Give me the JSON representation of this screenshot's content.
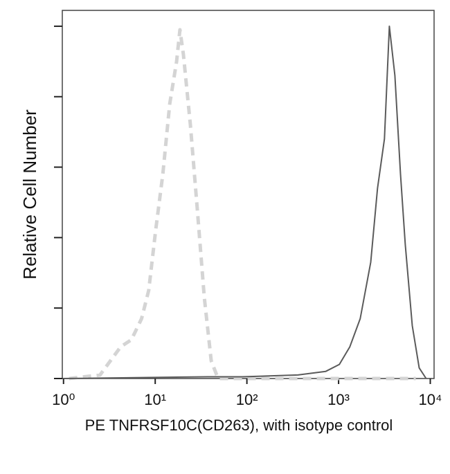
{
  "chart_data": {
    "type": "line",
    "xlabel": "PE TNFRSF10C(CD263), with isotype control",
    "ylabel": "Relative Cell Number",
    "xscale": "log",
    "xlim": [
      0.97,
      11000
    ],
    "xticks": [
      {
        "value": 1,
        "label": "10⁰"
      },
      {
        "value": 10,
        "label": "10¹"
      },
      {
        "value": 100,
        "label": "10²"
      },
      {
        "value": 1000,
        "label": "10³"
      },
      {
        "value": 10000,
        "label": "10⁴"
      }
    ],
    "ylim": [
      0,
      104.5
    ],
    "yticks": [
      0,
      20,
      40,
      60,
      80,
      100
    ],
    "series": [
      {
        "color": "#d4d4d4",
        "dashed": true,
        "x": [
          1.15,
          2.5,
          4.2,
          5.5,
          7.1,
          8.5,
          10.1,
          12.1,
          14.4,
          17.1,
          18.6,
          20.3,
          24.2,
          28.8,
          34.3,
          40.8,
          48.5,
          213,
          1217,
          6950
        ],
        "values": [
          0,
          1,
          9,
          11,
          17,
          25,
          42,
          58,
          78,
          90,
          99,
          92,
          72,
          48,
          23,
          5,
          0,
          0,
          0,
          0
        ]
      },
      {
        "color": "#5a5a5a",
        "dashed": false,
        "x": [
          1,
          37.4,
          89,
          360,
          721,
          1020,
          1327,
          1722,
          2240,
          2660,
          3160,
          3580,
          4110,
          4730,
          5340,
          6360,
          7570,
          9010
        ],
        "values": [
          0,
          0.5,
          0.5,
          1,
          2,
          4,
          9,
          17,
          33,
          54,
          68,
          100,
          86,
          58,
          38,
          15,
          3,
          0
        ]
      }
    ]
  }
}
